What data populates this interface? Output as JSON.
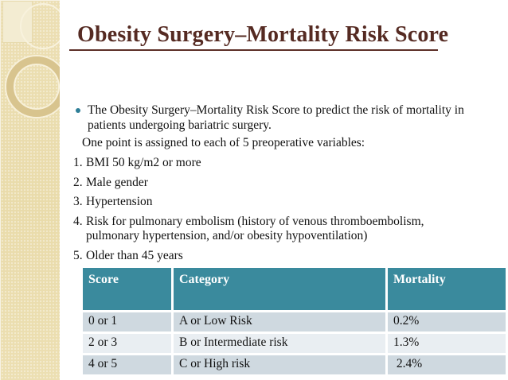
{
  "slide": {
    "title": "Obesity Surgery–Mortality Risk Score",
    "lead": "The Obesity Surgery–Mortality Risk Score to predict the risk of mortality in patients undergoing bariatric surgery.",
    "subtext": "One point is assigned to each of 5 preoperative variables:",
    "variables": [
      {
        "num": "1.",
        "text": "BMI 50 kg/m2 or more"
      },
      {
        "num": "2.",
        "text": "Male gender"
      },
      {
        "num": "3.",
        "text": "Hypertension"
      },
      {
        "num": "4.",
        "text": "Risk for pulmonary embolism (history of venous thromboembolism, pulmonary hypertension, and/or obesity hypoventilation)"
      },
      {
        "num": "5.",
        "text": "Older than 45 years"
      }
    ],
    "table": {
      "headers": [
        "Score",
        "Category",
        "Mortality"
      ],
      "rows": [
        [
          "0 or 1",
          "A or Low Risk",
          "0.2%"
        ],
        [
          "2 or 3",
          "B or Intermediate risk",
          "1.3%"
        ],
        [
          "4 or 5",
          "C or High risk",
          " 2.4%"
        ]
      ]
    },
    "colors": {
      "title_text": "#552A22",
      "bullet": "#2E7E97",
      "table_header_bg": "#3A8A9D",
      "table_row_odd_bg": "#CFD9E0",
      "table_row_even_bg": "#E9EEF2",
      "sidebar_base": "#EBDEAF"
    }
  }
}
